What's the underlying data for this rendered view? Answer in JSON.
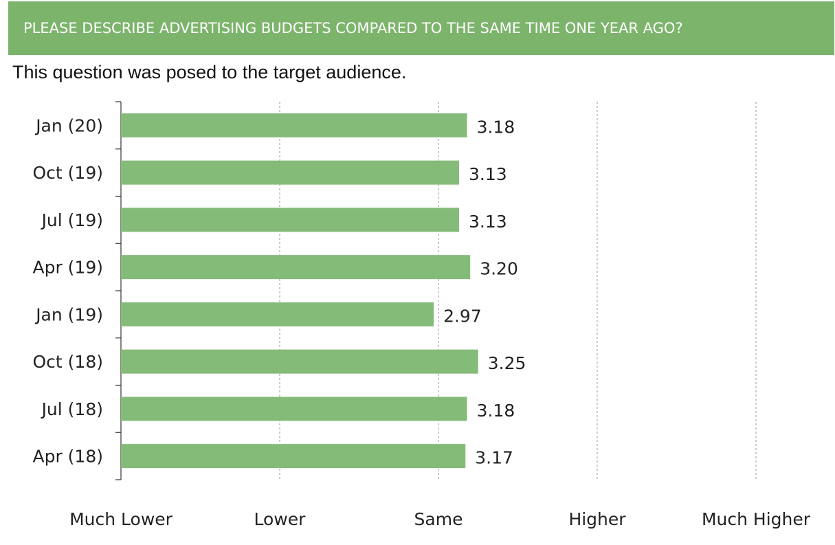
{
  "header": {
    "title": "PLEASE DESCRIBE ADVERTISING BUDGETS COMPARED TO THE SAME TIME ONE YEAR AGO?",
    "subtitle": "This question was posed to the target audience."
  },
  "colors": {
    "banner": "#7db46c",
    "bar": "#85bb78"
  },
  "chart_data": {
    "type": "bar",
    "orientation": "horizontal",
    "categories": [
      "Jan (20)",
      "Oct (19)",
      "Jul (19)",
      "Apr (19)",
      "Jan (19)",
      "Oct (18)",
      "Jul (18)",
      "Apr (18)"
    ],
    "values": [
      3.18,
      3.13,
      3.13,
      3.2,
      2.97,
      3.25,
      3.18,
      3.17
    ],
    "value_labels": [
      "3.18",
      "3.13",
      "3.13",
      "3.20",
      "2.97",
      "3.25",
      "3.18",
      "3.17"
    ],
    "xlim": [
      1,
      5
    ],
    "xticks": [
      1,
      2,
      3,
      4,
      5
    ],
    "xtick_labels": [
      "Much Lower",
      "Lower",
      "Same",
      "Higher",
      "Much Higher"
    ],
    "grid": "vertical dashed",
    "legend": "none"
  }
}
